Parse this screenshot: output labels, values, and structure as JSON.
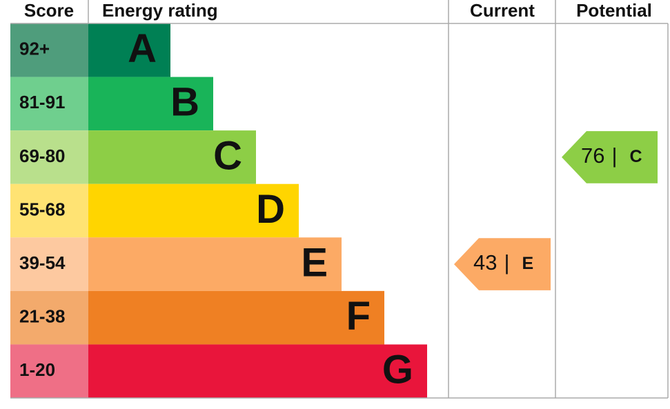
{
  "header": {
    "score": "Score",
    "rating": "Energy rating",
    "current": "Current",
    "potential": "Potential"
  },
  "bands": [
    {
      "score": "92+",
      "letter": "A",
      "color": "#008054",
      "light": "#4f9d7c"
    },
    {
      "score": "81-91",
      "letter": "B",
      "color": "#19b459",
      "light": "#6fcf8e"
    },
    {
      "score": "69-80",
      "letter": "C",
      "color": "#8dce46",
      "light": "#b9e08c"
    },
    {
      "score": "55-68",
      "letter": "D",
      "color": "#ffd500",
      "light": "#ffe373"
    },
    {
      "score": "39-54",
      "letter": "E",
      "color": "#fcaa65",
      "light": "#fdc9a0"
    },
    {
      "score": "21-38",
      "letter": "F",
      "color": "#ef8023",
      "light": "#f3aa6c"
    },
    {
      "score": "1-20",
      "letter": "G",
      "color": "#e9153b",
      "light": "#ef6f86"
    }
  ],
  "current": {
    "value": 43,
    "separator": "|",
    "letter": "E"
  },
  "potential": {
    "value": 76,
    "separator": "|",
    "letter": "C"
  }
}
